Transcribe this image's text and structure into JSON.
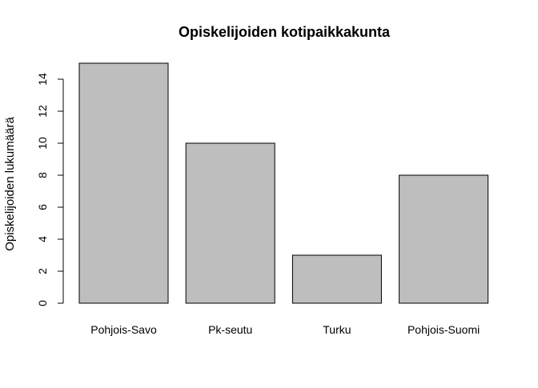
{
  "chart_data": {
    "type": "bar",
    "title": "Opiskelijoiden kotipaikkakunta",
    "xlabel": "",
    "ylabel": "Opiskelijoiden lukumäärä",
    "categories": [
      "Pohjois-Savo",
      "Pk-seutu",
      "Turku",
      "Pohjois-Suomi"
    ],
    "values": [
      15,
      10,
      3,
      8
    ],
    "ylim": [
      0,
      15
    ],
    "yticks": [
      0,
      2,
      4,
      6,
      8,
      10,
      12,
      14
    ],
    "grid": false,
    "legend": "none",
    "bar_color": "#bebebe",
    "bar_border_color": "#000000"
  }
}
